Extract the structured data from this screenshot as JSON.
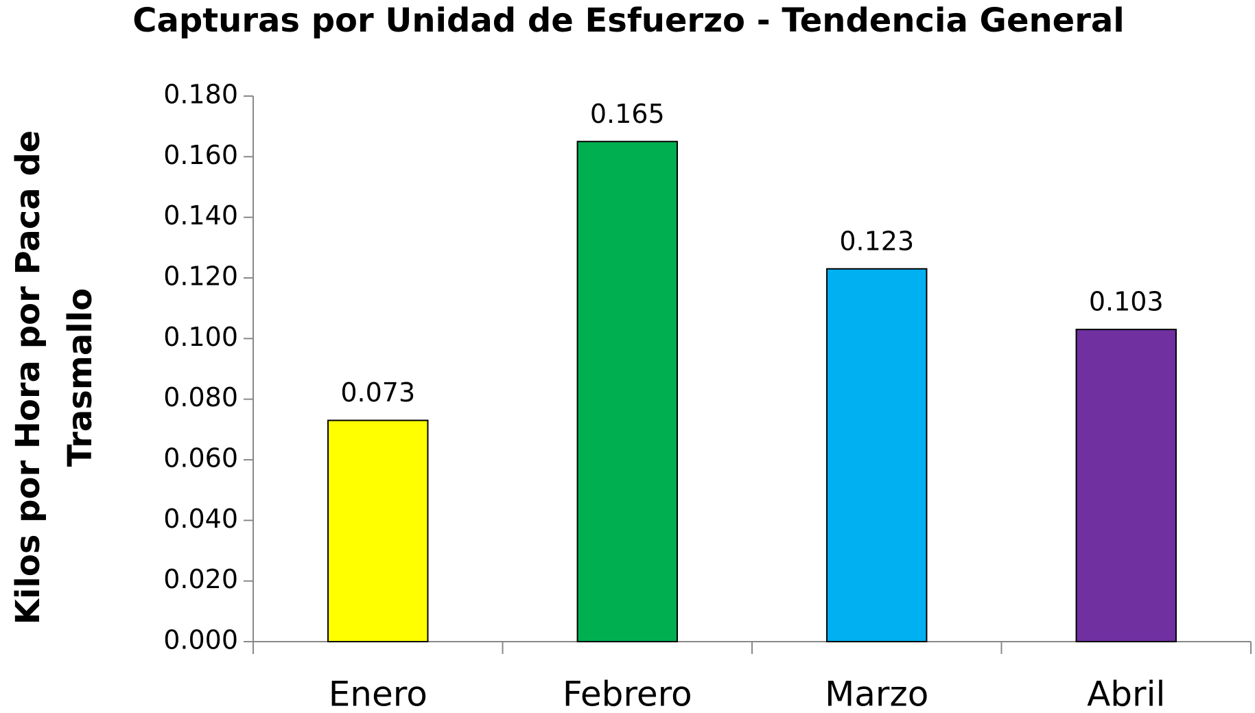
{
  "chart_data": {
    "type": "bar",
    "title": "Capturas por Unidad de Esfuerzo - Tendencia General",
    "y_label": "Kilos por Hora por Paca de Trasmallo",
    "categories": [
      "Enero",
      "Febrero",
      "Marzo",
      "Abril"
    ],
    "values": [
      0.073,
      0.165,
      0.123,
      0.103
    ],
    "colors": [
      "#ffff00",
      "#00b050",
      "#00b0f0",
      "#7030a0"
    ],
    "ylim": [
      0,
      0.18
    ],
    "yticks": [
      {
        "value": 0,
        "label": "0.000"
      },
      {
        "value": 0.02,
        "label": "0.020"
      },
      {
        "value": 0.04,
        "label": "0.040"
      },
      {
        "value": 0.06,
        "label": "0.060"
      },
      {
        "value": 0.08,
        "label": "0.080"
      },
      {
        "value": 0.1,
        "label": "0.100"
      },
      {
        "value": 0.12,
        "label": "0.120"
      },
      {
        "value": 0.14,
        "label": "0.140"
      },
      {
        "value": 0.16,
        "label": "0.160"
      },
      {
        "value": 0.18,
        "label": "0.180"
      }
    ],
    "grid": false
  }
}
